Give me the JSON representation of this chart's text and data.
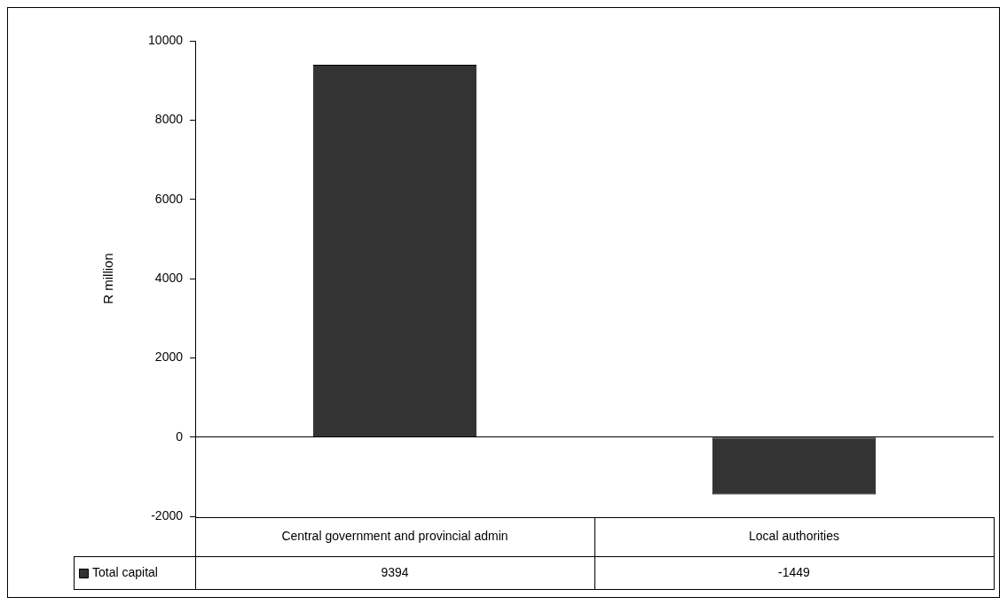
{
  "chart_data": {
    "type": "bar",
    "ylabel": "R million",
    "categories": [
      "Central government and provincial admin",
      "Local authorities"
    ],
    "series": [
      {
        "name": "Total capital",
        "color": "#333333",
        "values": [
          9394,
          -1449
        ]
      }
    ],
    "ylim": [
      -2000,
      10000
    ],
    "yticks": [
      -2000,
      0,
      2000,
      4000,
      6000,
      8000,
      10000
    ],
    "data_labels": true
  }
}
